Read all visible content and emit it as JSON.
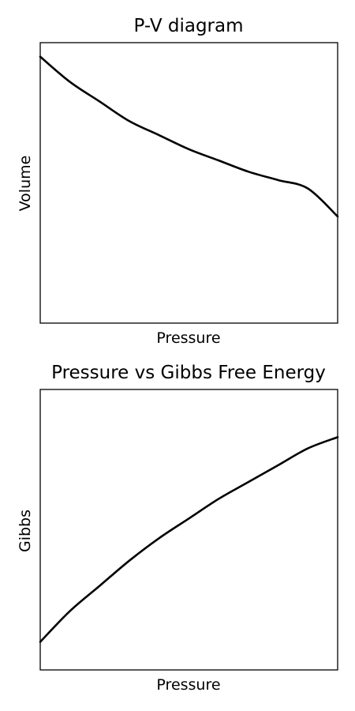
{
  "chart_data": [
    {
      "type": "line",
      "title": "P-V diagram",
      "xlabel": "Pressure",
      "ylabel": "Volume",
      "xlim": [
        0,
        1
      ],
      "ylim": [
        0,
        1
      ],
      "grid": false,
      "ticks": false,
      "color": "#000000",
      "series": [
        {
          "x": [
            0,
            0.1,
            0.2,
            0.3,
            0.4,
            0.5,
            0.6,
            0.7,
            0.8,
            0.9,
            1.0
          ],
          "y": [
            0.95,
            0.86,
            0.79,
            0.72,
            0.67,
            0.62,
            0.58,
            0.54,
            0.51,
            0.48,
            0.38
          ]
        }
      ]
    },
    {
      "type": "line",
      "title": "Pressure vs Gibbs Free Energy",
      "xlabel": "Pressure",
      "ylabel": "Gibbs",
      "xlim": [
        0,
        1
      ],
      "ylim": [
        0,
        1
      ],
      "grid": false,
      "ticks": false,
      "color": "#000000",
      "series": [
        {
          "x": [
            0,
            0.1,
            0.2,
            0.3,
            0.4,
            0.5,
            0.6,
            0.7,
            0.8,
            0.9,
            1.0
          ],
          "y": [
            0.1,
            0.21,
            0.3,
            0.39,
            0.47,
            0.54,
            0.61,
            0.67,
            0.73,
            0.79,
            0.83
          ]
        }
      ]
    }
  ]
}
